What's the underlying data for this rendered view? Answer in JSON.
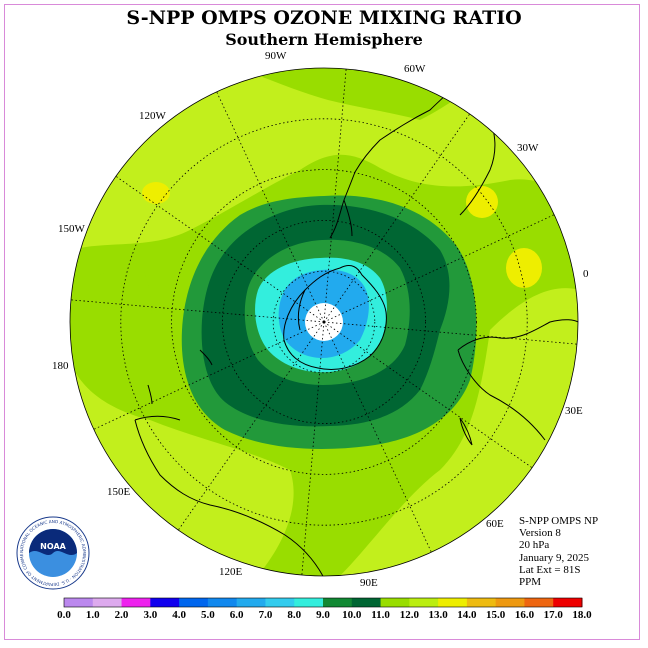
{
  "header": {
    "title": "S-NPP OMPS OZONE MIXING RATIO",
    "subtitle": "Southern Hemisphere"
  },
  "map": {
    "longitude_labels": [
      {
        "id": "lon-90w",
        "text": "90W"
      },
      {
        "id": "lon-60w",
        "text": "60W"
      },
      {
        "id": "lon-120w",
        "text": "120W"
      },
      {
        "id": "lon-30w",
        "text": "30W"
      },
      {
        "id": "lon-150w",
        "text": "150W"
      },
      {
        "id": "lon-0",
        "text": "0"
      },
      {
        "id": "lon-180",
        "text": "180"
      },
      {
        "id": "lon-30e",
        "text": "30E"
      },
      {
        "id": "lon-150e",
        "text": "150E"
      },
      {
        "id": "lon-60e",
        "text": "60E"
      },
      {
        "id": "lon-120e",
        "text": "120E"
      },
      {
        "id": "lon-90e",
        "text": "90E"
      }
    ]
  },
  "info": {
    "instrument": "S-NPP OMPS NP",
    "version": "Version 8",
    "pressure": "20 hPa",
    "date": "January 9, 2025",
    "lat_ext": "Lat Ext = 81S",
    "units": "PPM"
  },
  "logo": {
    "text": "NOAA",
    "ring_text": "NATIONAL OCEANIC AND ATMOSPHERIC ADMINISTRATION · U.S. DEPARTMENT OF COMMERCE"
  },
  "colorbar": {
    "ticks": [
      "0.0",
      "1.0",
      "2.0",
      "3.0",
      "4.0",
      "5.0",
      "6.0",
      "7.0",
      "8.0",
      "9.0",
      "10.0",
      "11.0",
      "12.0",
      "13.0",
      "14.0",
      "15.0",
      "16.0",
      "17.0",
      "18.0"
    ],
    "colors": [
      "#bb88ee",
      "#ddaaee",
      "#ee22ee",
      "#1100ee",
      "#0066ee",
      "#1188ee",
      "#22aaee",
      "#33ccee",
      "#33eedd",
      "#118833",
      "#006633",
      "#99dd00",
      "#bbee11",
      "#eeee00",
      "#eebb11",
      "#ee9911",
      "#ee6611",
      "#ee0000",
      "#885533"
    ]
  },
  "colors": {
    "lt_green": "#c2ef1c",
    "mid_green": "#99dd00",
    "green": "#22993a",
    "dk_green": "#006633",
    "cyan": "#33eedd",
    "lt_blue": "#22aaee",
    "yellow": "#eeee00",
    "pole": "#ffffff"
  }
}
